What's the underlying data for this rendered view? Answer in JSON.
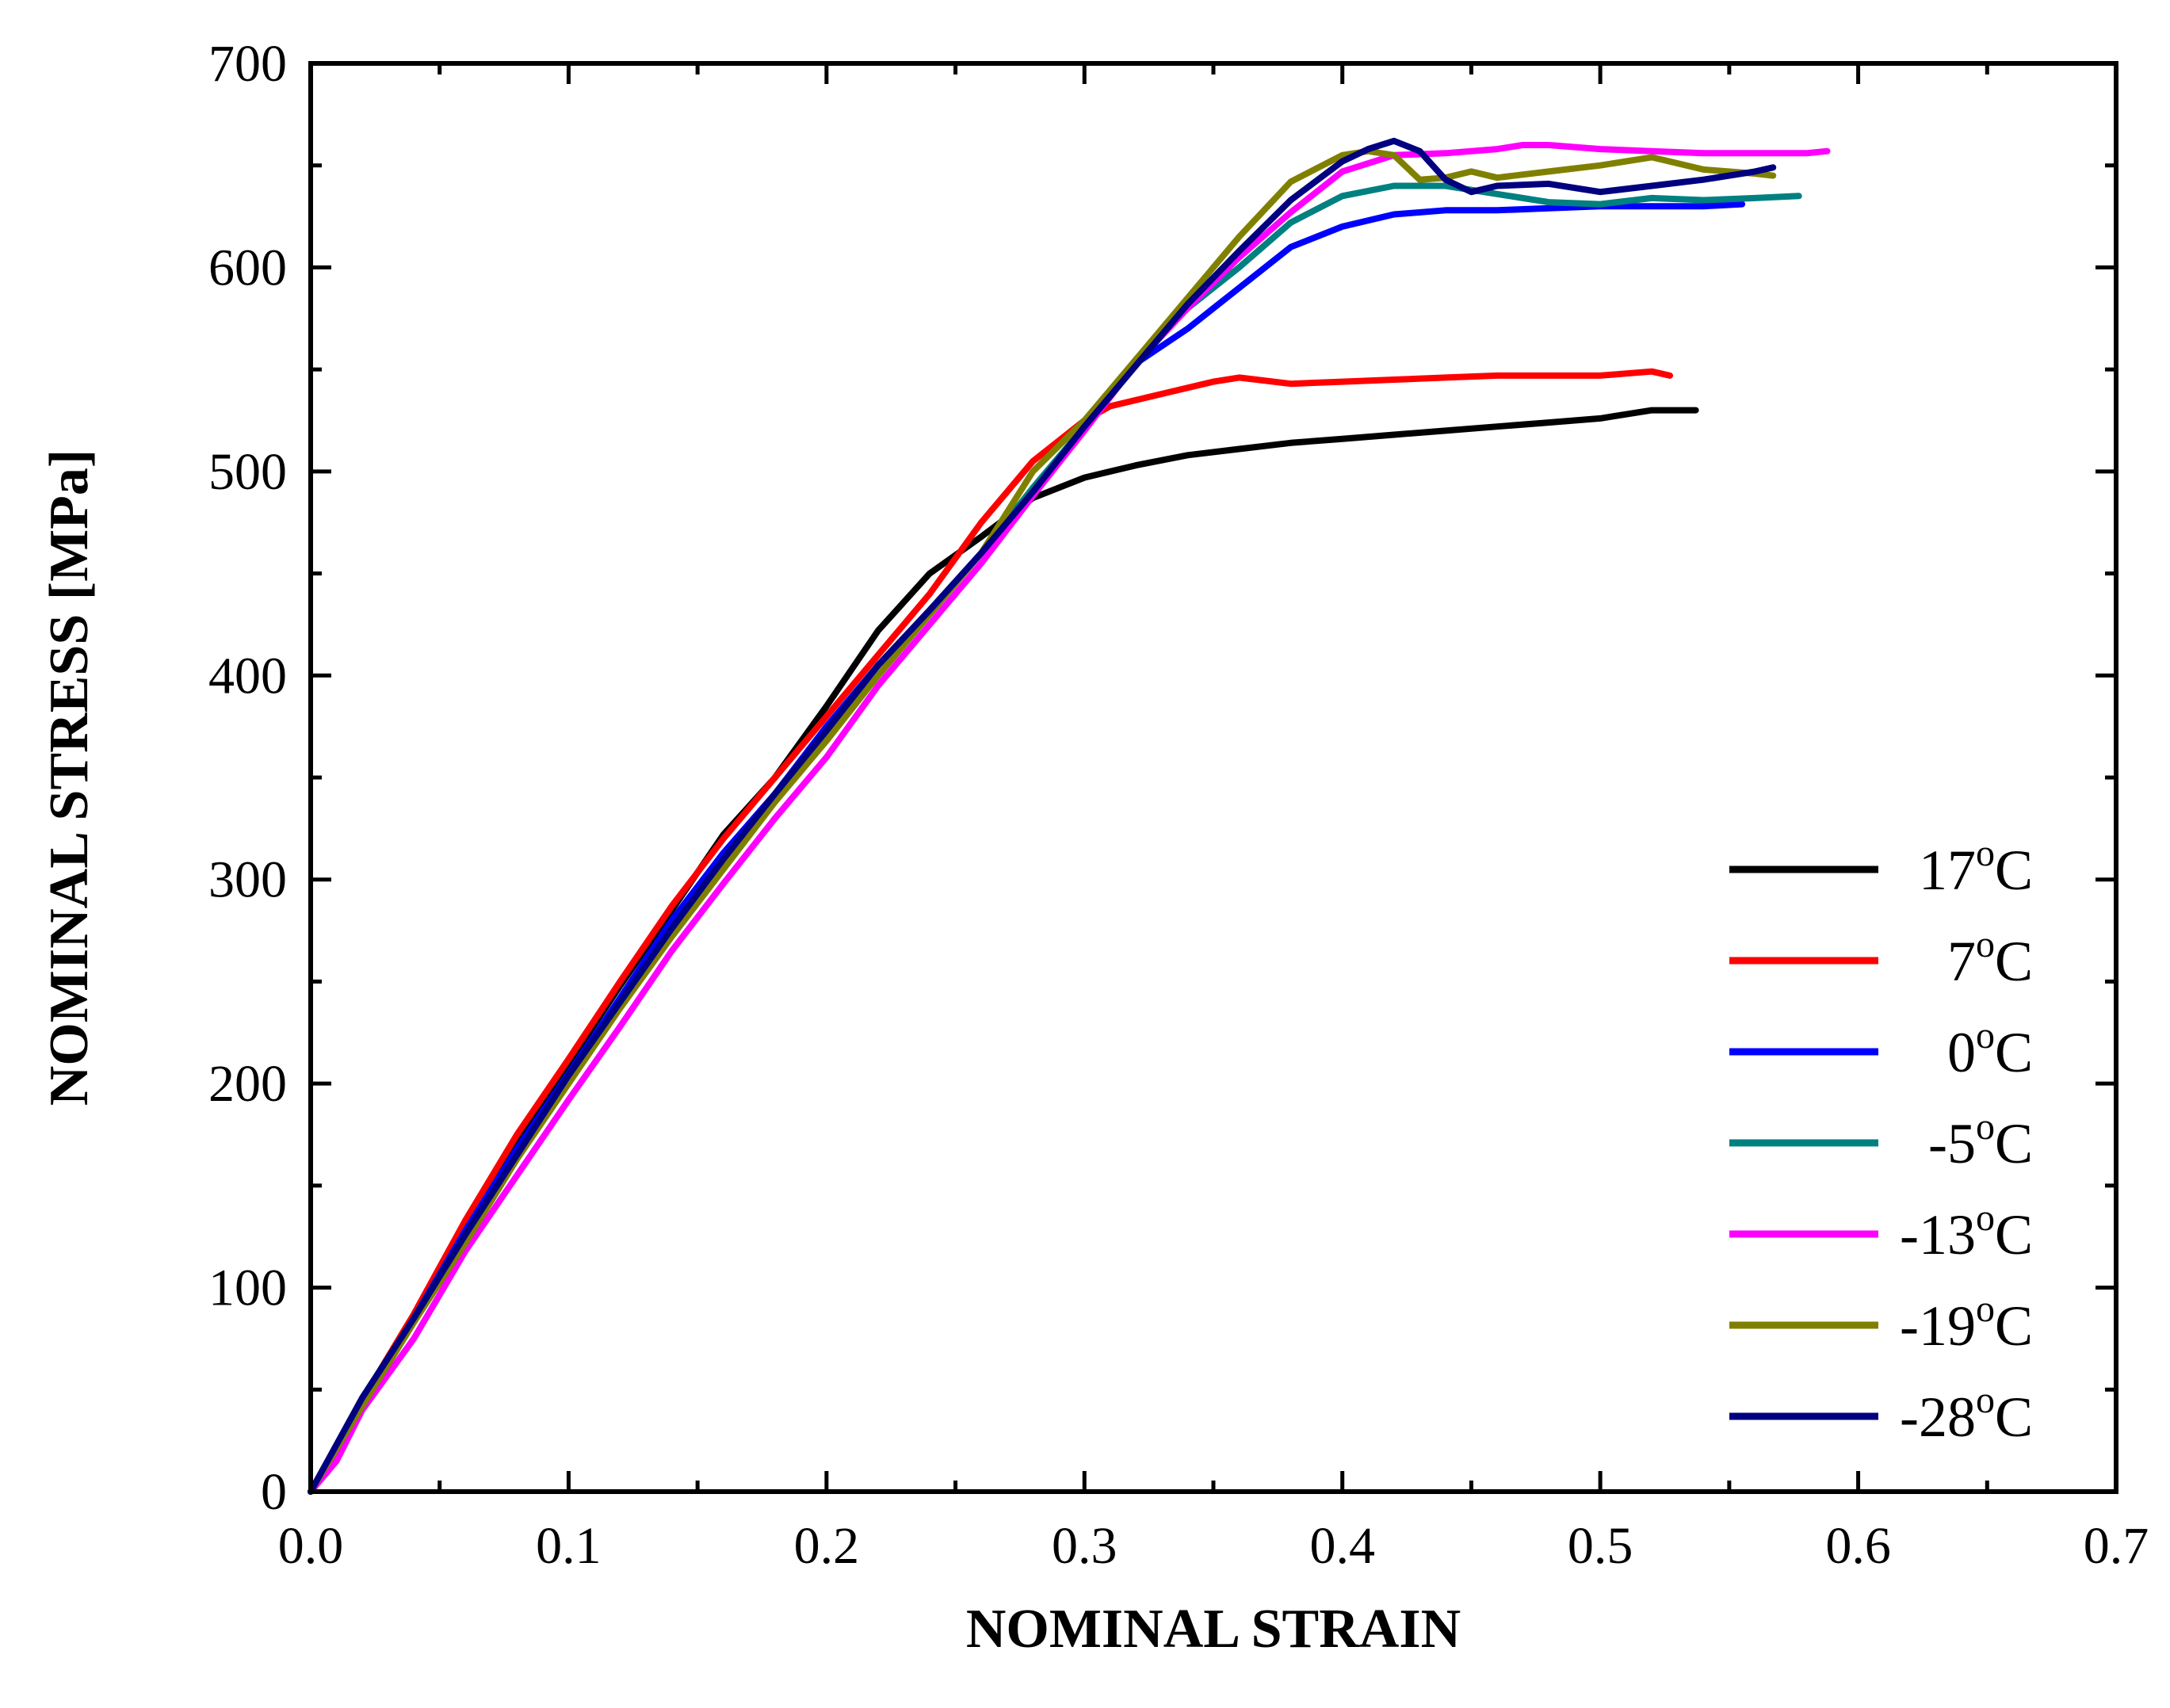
{
  "chart_data": {
    "type": "line",
    "title": "",
    "xlabel": "NOMINAL STRAIN",
    "ylabel": "NOMINAL STRESS [MPa]",
    "xlim": [
      0,
      0.7
    ],
    "ylim": [
      0,
      700
    ],
    "grid": false,
    "legend_position": "right-middle",
    "x_ticks": [
      0,
      0.1,
      0.2,
      0.3,
      0.4,
      0.5,
      0.6,
      0.7
    ],
    "x_tick_labels": [
      "0.0",
      "0.1",
      "0.2",
      "0.3",
      "0.4",
      "0.5",
      "0.6",
      "0.7"
    ],
    "y_ticks": [
      0,
      100,
      200,
      300,
      400,
      500,
      600,
      700
    ],
    "y_tick_labels": [
      "0",
      "100",
      "200",
      "300",
      "400",
      "500",
      "600",
      "700"
    ],
    "series": [
      {
        "name": "17°C",
        "label_main": "17",
        "label_sup": "o",
        "label_unit": "C",
        "color": "#000000",
        "points": [
          [
            0,
            0
          ],
          [
            0.02,
            45
          ],
          [
            0.04,
            85
          ],
          [
            0.06,
            130
          ],
          [
            0.08,
            172
          ],
          [
            0.1,
            210
          ],
          [
            0.12,
            248
          ],
          [
            0.14,
            285
          ],
          [
            0.16,
            322
          ],
          [
            0.18,
            350
          ],
          [
            0.2,
            385
          ],
          [
            0.22,
            422
          ],
          [
            0.24,
            450
          ],
          [
            0.26,
            468
          ],
          [
            0.28,
            487
          ],
          [
            0.3,
            497
          ],
          [
            0.32,
            503
          ],
          [
            0.34,
            508
          ],
          [
            0.36,
            511
          ],
          [
            0.38,
            514
          ],
          [
            0.4,
            516
          ],
          [
            0.42,
            518
          ],
          [
            0.44,
            520
          ],
          [
            0.46,
            522
          ],
          [
            0.48,
            524
          ],
          [
            0.5,
            526
          ],
          [
            0.52,
            530
          ],
          [
            0.537,
            530
          ]
        ]
      },
      {
        "name": "7°C",
        "label_main": "7",
        "label_sup": "o",
        "label_unit": "C",
        "color": "#ff0000",
        "points": [
          [
            0,
            0
          ],
          [
            0.02,
            45
          ],
          [
            0.04,
            87
          ],
          [
            0.06,
            133
          ],
          [
            0.08,
            175
          ],
          [
            0.1,
            212
          ],
          [
            0.12,
            250
          ],
          [
            0.14,
            287
          ],
          [
            0.16,
            320
          ],
          [
            0.18,
            350
          ],
          [
            0.2,
            380
          ],
          [
            0.22,
            410
          ],
          [
            0.24,
            440
          ],
          [
            0.26,
            475
          ],
          [
            0.28,
            505
          ],
          [
            0.3,
            525
          ],
          [
            0.31,
            532
          ],
          [
            0.33,
            538
          ],
          [
            0.35,
            544
          ],
          [
            0.36,
            546
          ],
          [
            0.38,
            543
          ],
          [
            0.4,
            544
          ],
          [
            0.42,
            545
          ],
          [
            0.44,
            546
          ],
          [
            0.46,
            547
          ],
          [
            0.48,
            547
          ],
          [
            0.5,
            547
          ],
          [
            0.52,
            549
          ],
          [
            0.527,
            547
          ]
        ]
      },
      {
        "name": "0°C",
        "label_main": "0",
        "label_sup": "o",
        "label_unit": "C",
        "color": "#0000ff",
        "points": [
          [
            0,
            0
          ],
          [
            0.02,
            44
          ],
          [
            0.04,
            85
          ],
          [
            0.06,
            128
          ],
          [
            0.08,
            168
          ],
          [
            0.1,
            205
          ],
          [
            0.12,
            242
          ],
          [
            0.14,
            280
          ],
          [
            0.16,
            313
          ],
          [
            0.18,
            342
          ],
          [
            0.2,
            375
          ],
          [
            0.22,
            405
          ],
          [
            0.24,
            432
          ],
          [
            0.26,
            460
          ],
          [
            0.28,
            490
          ],
          [
            0.3,
            522
          ],
          [
            0.32,
            553
          ],
          [
            0.34,
            570
          ],
          [
            0.36,
            590
          ],
          [
            0.38,
            610
          ],
          [
            0.4,
            620
          ],
          [
            0.42,
            626
          ],
          [
            0.44,
            628
          ],
          [
            0.46,
            628
          ],
          [
            0.48,
            629
          ],
          [
            0.5,
            630
          ],
          [
            0.52,
            630
          ],
          [
            0.54,
            630
          ],
          [
            0.555,
            631
          ]
        ]
      },
      {
        "name": "-5°C",
        "label_main": "-5",
        "label_sup": "o",
        "label_unit": "C",
        "color": "#008080",
        "points": [
          [
            0,
            0
          ],
          [
            0.02,
            42
          ],
          [
            0.04,
            83
          ],
          [
            0.06,
            125
          ],
          [
            0.08,
            165
          ],
          [
            0.1,
            202
          ],
          [
            0.12,
            238
          ],
          [
            0.14,
            275
          ],
          [
            0.16,
            310
          ],
          [
            0.18,
            340
          ],
          [
            0.2,
            370
          ],
          [
            0.22,
            400
          ],
          [
            0.24,
            430
          ],
          [
            0.26,
            460
          ],
          [
            0.28,
            492
          ],
          [
            0.3,
            522
          ],
          [
            0.32,
            555
          ],
          [
            0.34,
            580
          ],
          [
            0.36,
            600
          ],
          [
            0.38,
            622
          ],
          [
            0.4,
            635
          ],
          [
            0.42,
            640
          ],
          [
            0.44,
            640
          ],
          [
            0.46,
            636
          ],
          [
            0.48,
            632
          ],
          [
            0.5,
            631
          ],
          [
            0.52,
            634
          ],
          [
            0.54,
            633
          ],
          [
            0.56,
            634
          ],
          [
            0.577,
            635
          ]
        ]
      },
      {
        "name": "-13°C",
        "label_main": "-13",
        "label_sup": "o",
        "label_unit": "C",
        "color": "#ff00ff",
        "points": [
          [
            0,
            0
          ],
          [
            0.01,
            15
          ],
          [
            0.02,
            40
          ],
          [
            0.04,
            75
          ],
          [
            0.06,
            118
          ],
          [
            0.08,
            155
          ],
          [
            0.1,
            192
          ],
          [
            0.12,
            228
          ],
          [
            0.14,
            265
          ],
          [
            0.16,
            298
          ],
          [
            0.18,
            330
          ],
          [
            0.2,
            360
          ],
          [
            0.22,
            395
          ],
          [
            0.24,
            425
          ],
          [
            0.26,
            455
          ],
          [
            0.28,
            488
          ],
          [
            0.3,
            520
          ],
          [
            0.32,
            553
          ],
          [
            0.34,
            580
          ],
          [
            0.36,
            605
          ],
          [
            0.38,
            627
          ],
          [
            0.4,
            647
          ],
          [
            0.42,
            655
          ],
          [
            0.44,
            656
          ],
          [
            0.46,
            658
          ],
          [
            0.47,
            660
          ],
          [
            0.48,
            660
          ],
          [
            0.5,
            658
          ],
          [
            0.52,
            657
          ],
          [
            0.54,
            656
          ],
          [
            0.56,
            656
          ],
          [
            0.58,
            656
          ],
          [
            0.588,
            657
          ]
        ]
      },
      {
        "name": "-19°C",
        "label_main": "-19",
        "label_sup": "o",
        "label_unit": "C",
        "color": "#808000",
        "points": [
          [
            0,
            0
          ],
          [
            0.02,
            42
          ],
          [
            0.04,
            83
          ],
          [
            0.06,
            122
          ],
          [
            0.08,
            163
          ],
          [
            0.1,
            200
          ],
          [
            0.12,
            237
          ],
          [
            0.14,
            272
          ],
          [
            0.16,
            305
          ],
          [
            0.18,
            338
          ],
          [
            0.2,
            368
          ],
          [
            0.22,
            400
          ],
          [
            0.24,
            430
          ],
          [
            0.26,
            460
          ],
          [
            0.28,
            500
          ],
          [
            0.3,
            525
          ],
          [
            0.32,
            555
          ],
          [
            0.34,
            585
          ],
          [
            0.36,
            615
          ],
          [
            0.38,
            642
          ],
          [
            0.4,
            655
          ],
          [
            0.41,
            657
          ],
          [
            0.42,
            655
          ],
          [
            0.43,
            643
          ],
          [
            0.44,
            644
          ],
          [
            0.45,
            647
          ],
          [
            0.46,
            644
          ],
          [
            0.48,
            647
          ],
          [
            0.5,
            650
          ],
          [
            0.52,
            654
          ],
          [
            0.54,
            648
          ],
          [
            0.56,
            646
          ],
          [
            0.567,
            645
          ]
        ]
      },
      {
        "name": "-28°C",
        "label_main": "-28",
        "label_sup": "o",
        "label_unit": "C",
        "color": "#000080",
        "points": [
          [
            0,
            0
          ],
          [
            0.02,
            46
          ],
          [
            0.04,
            85
          ],
          [
            0.06,
            126
          ],
          [
            0.08,
            165
          ],
          [
            0.1,
            204
          ],
          [
            0.12,
            240
          ],
          [
            0.14,
            276
          ],
          [
            0.16,
            310
          ],
          [
            0.18,
            342
          ],
          [
            0.2,
            373
          ],
          [
            0.22,
            405
          ],
          [
            0.24,
            432
          ],
          [
            0.26,
            460
          ],
          [
            0.28,
            490
          ],
          [
            0.3,
            522
          ],
          [
            0.32,
            552
          ],
          [
            0.34,
            582
          ],
          [
            0.36,
            608
          ],
          [
            0.38,
            633
          ],
          [
            0.4,
            652
          ],
          [
            0.41,
            658
          ],
          [
            0.42,
            662
          ],
          [
            0.43,
            657
          ],
          [
            0.44,
            643
          ],
          [
            0.45,
            637
          ],
          [
            0.46,
            640
          ],
          [
            0.48,
            641
          ],
          [
            0.5,
            637
          ],
          [
            0.52,
            640
          ],
          [
            0.54,
            643
          ],
          [
            0.56,
            647
          ],
          [
            0.567,
            649
          ]
        ]
      }
    ]
  }
}
